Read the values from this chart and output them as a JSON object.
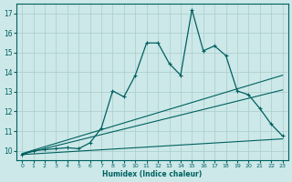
{
  "xlabel": "Humidex (Indice chaleur)",
  "background_color": "#cce8e8",
  "grid_color": "#aacccc",
  "line_color": "#006060",
  "xlim": [
    -0.5,
    23.5
  ],
  "ylim": [
    9.5,
    17.5
  ],
  "xticks": [
    0,
    1,
    2,
    3,
    4,
    5,
    6,
    7,
    8,
    9,
    10,
    11,
    12,
    13,
    14,
    15,
    16,
    17,
    18,
    19,
    20,
    21,
    22,
    23
  ],
  "yticks": [
    10,
    11,
    12,
    13,
    14,
    15,
    16,
    17
  ],
  "curve_x": [
    0,
    1,
    2,
    3,
    4,
    5,
    6,
    7,
    8,
    9,
    10,
    11,
    12,
    13,
    14,
    15,
    16,
    17,
    18,
    19,
    20,
    21,
    22,
    23
  ],
  "curve_y": [
    9.8,
    10.0,
    10.05,
    10.1,
    10.15,
    10.1,
    10.4,
    11.15,
    13.05,
    12.75,
    13.85,
    15.5,
    15.5,
    14.45,
    13.85,
    17.2,
    15.1,
    15.35,
    14.85,
    13.05,
    12.85,
    12.15,
    11.35,
    10.75
  ],
  "line1_x": [
    0,
    23
  ],
  "line1_y": [
    9.85,
    13.85
  ],
  "line2_x": [
    0,
    23
  ],
  "line2_y": [
    9.82,
    13.1
  ],
  "line3_x": [
    0,
    23
  ],
  "line3_y": [
    9.8,
    10.6
  ]
}
